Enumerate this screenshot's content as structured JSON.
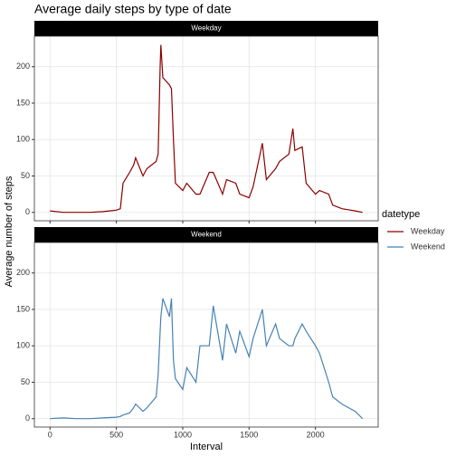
{
  "chart_data": {
    "type": "line",
    "title": "Average daily steps by type of date",
    "x_label": "Interval",
    "y_label": "Average number of steps",
    "legend_title": "datetype",
    "x": [
      0,
      100,
      200,
      300,
      400,
      500,
      530,
      550,
      600,
      630,
      645,
      700,
      730,
      800,
      815,
      830,
      835,
      850,
      900,
      915,
      930,
      945,
      1000,
      1030,
      1100,
      1130,
      1200,
      1230,
      1300,
      1330,
      1400,
      1430,
      1500,
      1530,
      1600,
      1630,
      1700,
      1730,
      1800,
      1830,
      1845,
      1900,
      1930,
      2000,
      2030,
      2100,
      2130,
      2200,
      2300,
      2355
    ],
    "series": [
      {
        "name": "Weekday",
        "color": "#8b0000",
        "values": [
          2,
          0,
          0,
          0,
          1,
          3,
          5,
          40,
          55,
          65,
          75,
          50,
          60,
          70,
          80,
          200,
          230,
          185,
          175,
          170,
          100,
          40,
          30,
          40,
          25,
          25,
          55,
          55,
          25,
          45,
          40,
          25,
          20,
          35,
          95,
          45,
          60,
          70,
          80,
          115,
          85,
          90,
          40,
          25,
          30,
          25,
          10,
          5,
          2,
          0
        ]
      },
      {
        "name": "Weekend",
        "color": "#4682b4",
        "values": [
          0,
          1,
          0,
          0,
          1,
          2,
          3,
          5,
          8,
          15,
          20,
          10,
          15,
          30,
          60,
          120,
          140,
          165,
          140,
          165,
          80,
          55,
          40,
          70,
          50,
          100,
          100,
          155,
          80,
          130,
          90,
          120,
          85,
          110,
          150,
          100,
          130,
          110,
          100,
          100,
          110,
          130,
          120,
          100,
          90,
          50,
          30,
          20,
          10,
          0
        ]
      }
    ],
    "xlim": [
      -117.75,
      2472.75
    ],
    "xticks": [
      0,
      500,
      1000,
      1500,
      2000
    ],
    "ylim": [
      -11.5,
      241.9
    ],
    "yticks": [
      0,
      50,
      100,
      150,
      200
    ],
    "grid": true,
    "legend": "right"
  }
}
